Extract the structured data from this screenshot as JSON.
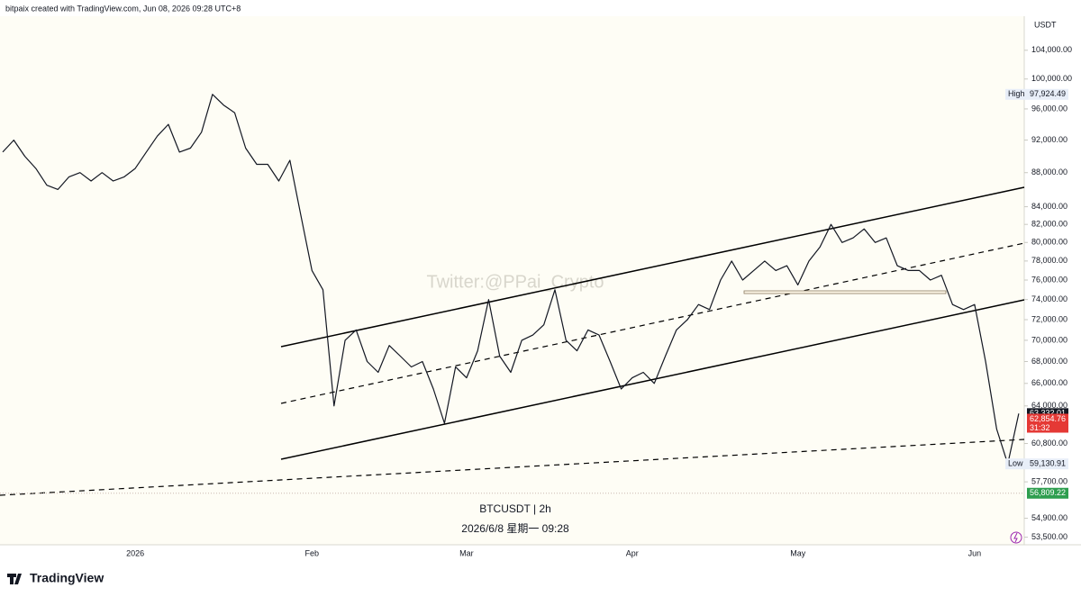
{
  "header": "bitpaix created with TradingView.com, Jun 08, 2026 09:28 UTC+8",
  "brand": "TradingView",
  "chart_data": {
    "type": "line",
    "title": "BTCUSDT | 2h",
    "subtitle": "2026/6/8 星期一 09:28",
    "watermark": "Twitter:@PPai_Crypto",
    "currency": "USDT",
    "log_scale": true,
    "grid": false,
    "ylim": [
      52950,
      108950
    ],
    "yticks": [
      {
        "value": 104000,
        "label": "104,000.00"
      },
      {
        "value": 100000,
        "label": "100,000.00"
      },
      {
        "value": 96000,
        "label": "96,000.00"
      },
      {
        "value": 92000,
        "label": "92,000.00"
      },
      {
        "value": 88000,
        "label": "88,000.00"
      },
      {
        "value": 84000,
        "label": "84,000.00"
      },
      {
        "value": 82000,
        "label": "82,000.00"
      },
      {
        "value": 80000,
        "label": "80,000.00"
      },
      {
        "value": 78000,
        "label": "78,000.00"
      },
      {
        "value": 76000,
        "label": "76,000.00"
      },
      {
        "value": 74000,
        "label": "74,000.00"
      },
      {
        "value": 72000,
        "label": "72,000.00"
      },
      {
        "value": 70000,
        "label": "70,000.00"
      },
      {
        "value": 68000,
        "label": "68,000.00"
      },
      {
        "value": 66000,
        "label": "66,000.00"
      },
      {
        "value": 64000,
        "label": "64,000.00"
      },
      {
        "value": 60800,
        "label": "60,800.00"
      },
      {
        "value": 57700,
        "label": "57,700.00"
      },
      {
        "value": 54900,
        "label": "54,900.00"
      },
      {
        "value": 53500,
        "label": "53,500.00"
      }
    ],
    "categories": [
      null,
      null,
      null,
      null,
      null,
      null,
      null,
      null,
      null,
      null,
      null,
      null,
      "2026",
      null,
      null,
      null,
      null,
      null,
      null,
      null,
      null,
      null,
      null,
      null,
      null,
      null,
      null,
      null,
      "Feb",
      null,
      null,
      null,
      null,
      null,
      null,
      null,
      null,
      null,
      null,
      null,
      null,
      null,
      "Mar",
      null,
      null,
      null,
      null,
      null,
      null,
      null,
      null,
      null,
      null,
      null,
      null,
      null,
      null,
      "Apr",
      null,
      null,
      null,
      null,
      null,
      null,
      null,
      null,
      null,
      null,
      null,
      null,
      null,
      null,
      "May",
      null,
      null,
      null,
      null,
      null,
      null,
      null,
      null,
      null,
      null,
      null,
      null,
      null,
      null,
      null,
      "Jun",
      null,
      null,
      null,
      null
    ],
    "series": [
      {
        "name": "BTCUSDT",
        "color": "#131722",
        "values": [
          90500,
          92000,
          90000,
          88500,
          86500,
          86000,
          87500,
          88000,
          87000,
          88000,
          87000,
          87500,
          88500,
          90500,
          92500,
          94000,
          90500,
          91000,
          93000,
          97924.49,
          96500,
          95500,
          91000,
          89000,
          89000,
          87000,
          89500,
          83000,
          77000,
          75000,
          64000,
          70000,
          71000,
          68000,
          67000,
          69500,
          68500,
          67500,
          68000,
          65500,
          62500,
          67500,
          66500,
          69000,
          74000,
          68500,
          67000,
          70000,
          70500,
          71500,
          75000,
          70000,
          69000,
          71000,
          70500,
          68000,
          65500,
          66500,
          67000,
          66000,
          68500,
          71000,
          72000,
          73500,
          73000,
          76000,
          78000,
          76000,
          77000,
          78000,
          77000,
          77500,
          75500,
          78000,
          79500,
          82000,
          80000,
          80500,
          81500,
          80000,
          80500,
          77500,
          77000,
          77000,
          76000,
          76500,
          73500,
          73000,
          73500,
          68000,
          62000,
          59130.91,
          63332.01
        ]
      }
    ],
    "markers": [
      {
        "name": "High",
        "value": 97924.49,
        "label": "97,924.49"
      },
      {
        "name": "Low",
        "value": 59130.91,
        "label": "59,130.91"
      }
    ],
    "price_badges": [
      {
        "value": 63332.01,
        "label": "63,332.01",
        "color": "#131722"
      },
      {
        "value": 62854.76,
        "label": "62,854.76",
        "color": "#e53935"
      },
      {
        "value": 56809.22,
        "label": "56,809.22",
        "color": "#2e9e4f"
      }
    ],
    "countdown": "31:32"
  }
}
